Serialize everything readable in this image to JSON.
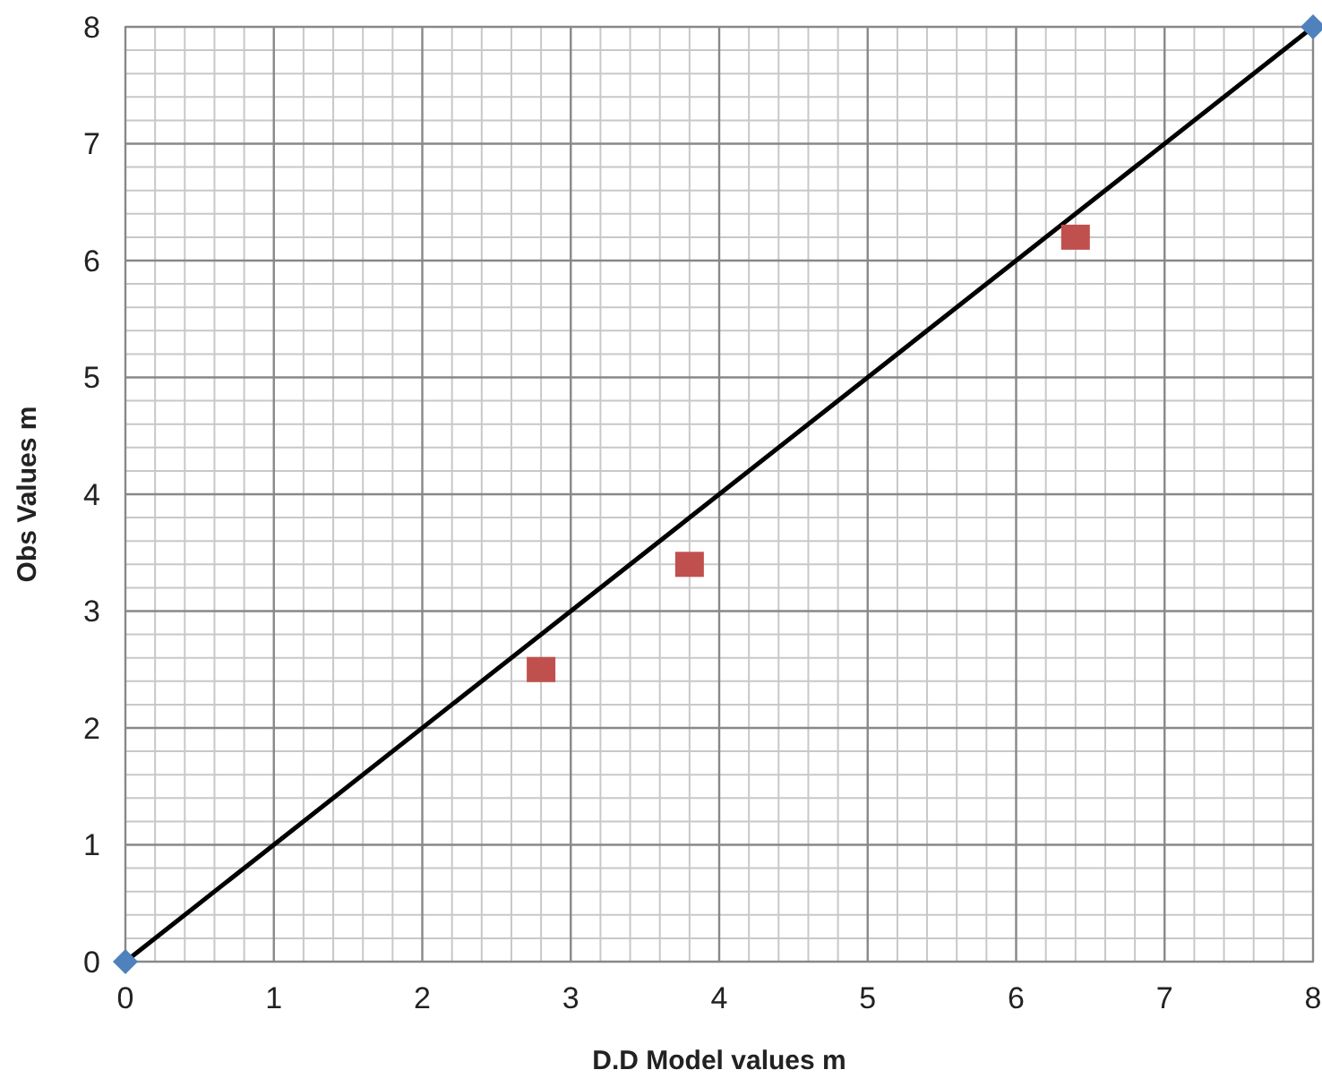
{
  "chart_data": {
    "type": "scatter",
    "xlabel": "D.D Model values m",
    "ylabel": "Obs Values m",
    "xlim": [
      0,
      8
    ],
    "ylim": [
      0,
      8
    ],
    "xticks": [
      0,
      1,
      2,
      3,
      4,
      5,
      6,
      7,
      8
    ],
    "yticks": [
      0,
      1,
      2,
      3,
      4,
      5,
      6,
      7,
      8
    ],
    "grid": true,
    "series": [
      {
        "type": "line",
        "x": [
          0,
          8
        ],
        "values": [
          0,
          8
        ],
        "color": "#000000",
        "marker": "none",
        "line_style": "solid"
      },
      {
        "x": [
          0,
          8
        ],
        "values": [
          0,
          8
        ],
        "color": "#4f81bd",
        "marker": "diamond"
      },
      {
        "x": [
          2.8,
          3.8,
          6.4
        ],
        "values": [
          2.5,
          3.4,
          6.2
        ],
        "color": "#c0504d",
        "marker": "square"
      }
    ]
  }
}
